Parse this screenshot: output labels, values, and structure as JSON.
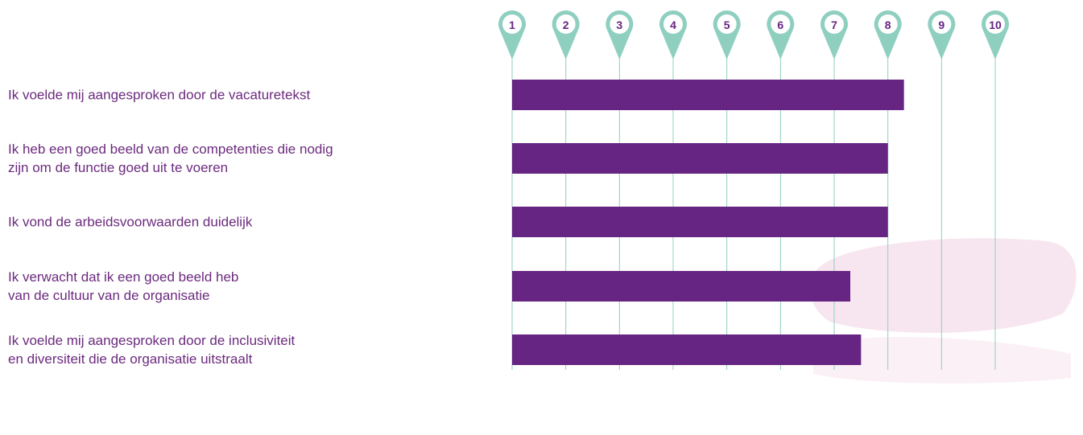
{
  "chart_data": {
    "type": "bar",
    "orientation": "horizontal",
    "categories": [
      "Ik voelde mij aangesproken door de vacaturetekst",
      "Ik heb een goed beeld van de competenties die nodig\nzijn om de functie goed uit te voeren",
      "Ik vond de arbeidsvoorwaarden duidelijk",
      "Ik verwacht dat ik een goed beeld heb\nvan de cultuur van de organisatie",
      "Ik voelde mij aangesproken door de inclusiviteit\nen diversiteit die de organisatie uitstraalt"
    ],
    "values": [
      8.3,
      8.0,
      8.0,
      7.3,
      7.5
    ],
    "color": "#662483",
    "xlim": [
      1,
      10
    ],
    "xticks": [
      1,
      2,
      3,
      4,
      5,
      6,
      7,
      8,
      9,
      10
    ],
    "grid": true,
    "grid_color": "#8fcfc0"
  }
}
